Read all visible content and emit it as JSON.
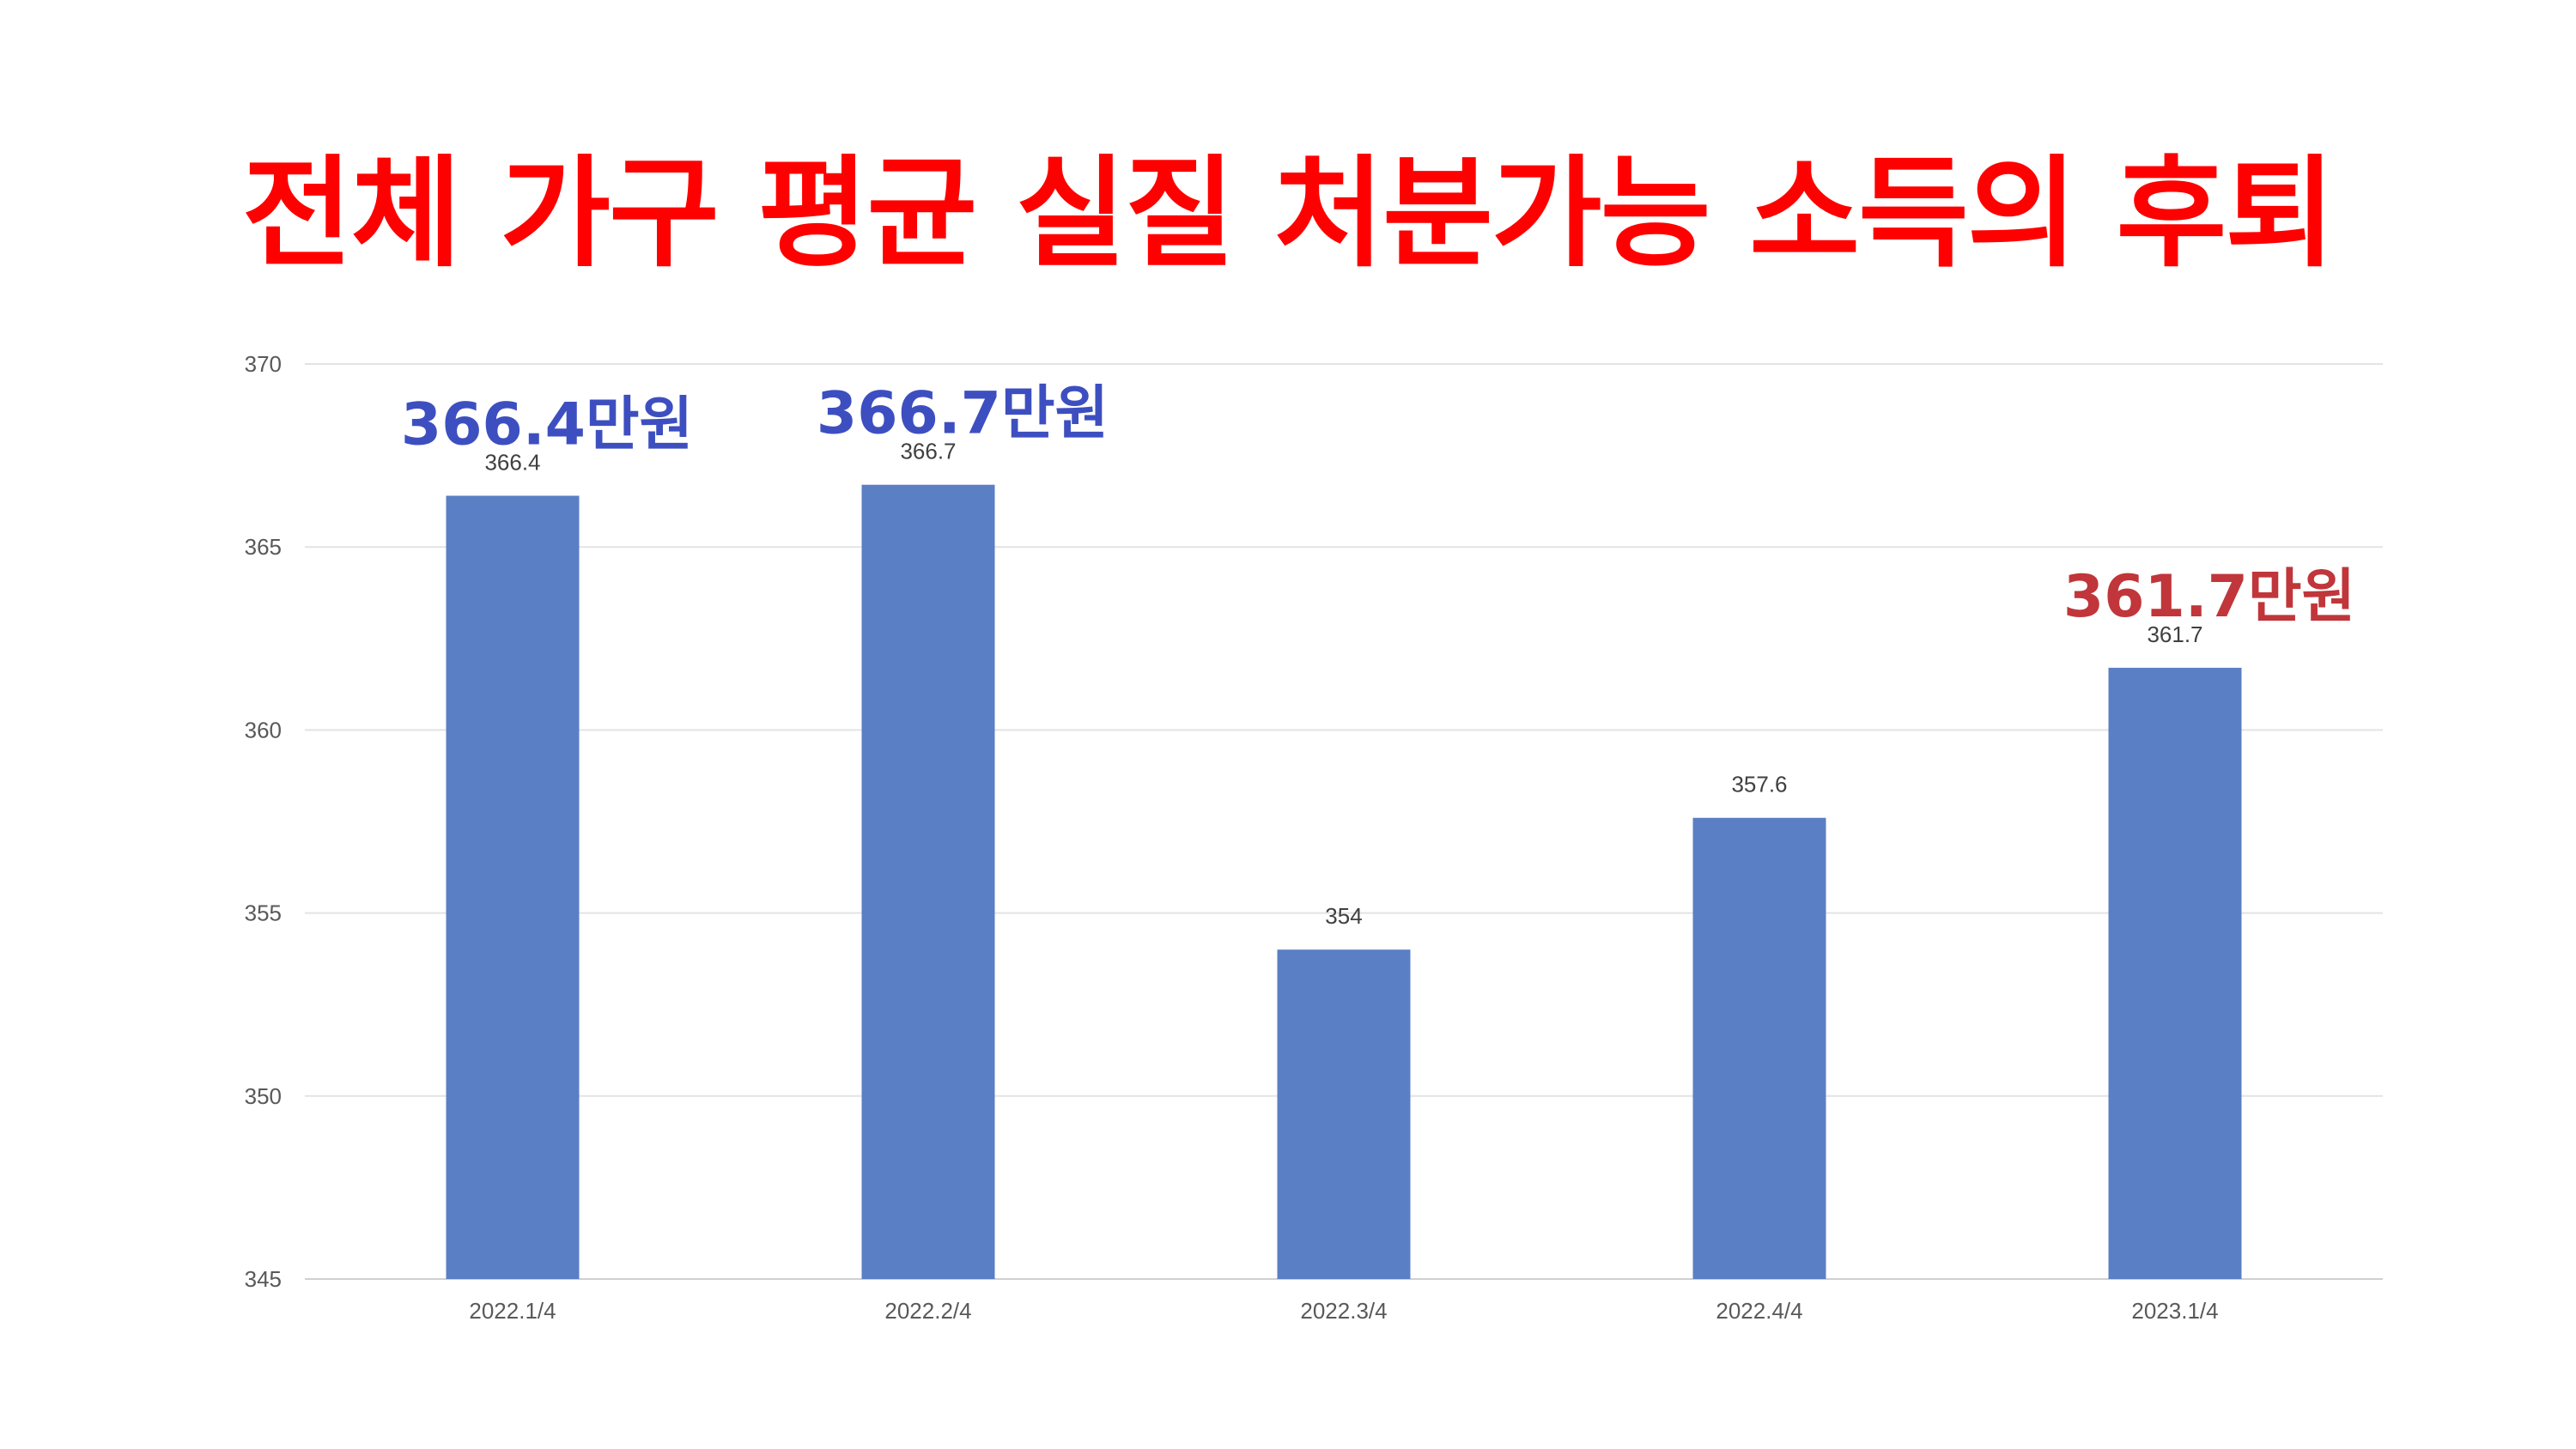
{
  "title": "전체 가구 평균 실질 처분가능 소득의 후퇴",
  "chart_data": {
    "type": "bar",
    "categories": [
      "2022.1/4",
      "2022.2/4",
      "2022.3/4",
      "2022.4/4",
      "2023.1/4"
    ],
    "values": [
      366.4,
      366.7,
      354,
      357.6,
      361.7
    ],
    "value_labels": [
      "366.4",
      "366.7",
      "354",
      "357.6",
      "361.7"
    ],
    "ylim": [
      345,
      370
    ],
    "yticks": [
      345,
      350,
      355,
      360,
      365,
      370
    ],
    "grid": true,
    "bar_color": "#5b7fc4",
    "callouts": [
      {
        "category_index": 0,
        "text": "366.4만원",
        "color": "#3d4fc0"
      },
      {
        "category_index": 1,
        "text": "366.7만원",
        "color": "#3d4fc0"
      },
      {
        "category_index": 4,
        "text": "361.7만원",
        "color": "#c0363a"
      }
    ]
  }
}
